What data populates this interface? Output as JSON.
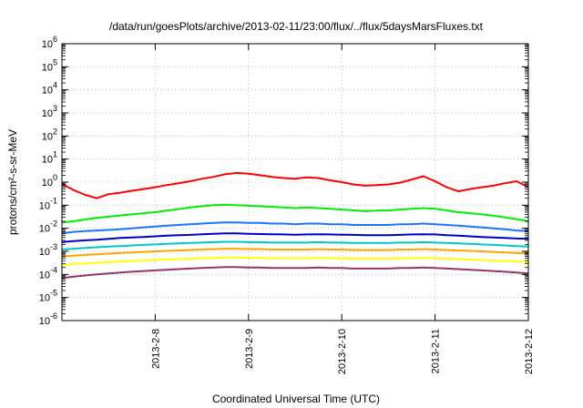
{
  "chart_data": {
    "type": "line",
    "title": "/data/run/goesPlots/archive/2013-02-11/23:00/flux/../flux/5daysMarsFluxes.txt",
    "xlabel": "Coordinated Universal Time (UTC)",
    "ylabel": "protons/cm²-s-sr-MeV",
    "yscale": "log",
    "ylim": [
      1e-06,
      1000000.0
    ],
    "xlim": [
      "2013-02-07 00:00",
      "2013-02-12 00:00"
    ],
    "grid": true,
    "legend": "none",
    "x_ticks": [
      "2013-2-8",
      "2013-2-9",
      "2013-2-10",
      "2013-2-11",
      "2013-2-12"
    ],
    "y_ticks": [
      {
        "base": "10",
        "exp": "-6"
      },
      {
        "base": "10",
        "exp": "-5"
      },
      {
        "base": "10",
        "exp": "-4"
      },
      {
        "base": "10",
        "exp": "-3"
      },
      {
        "base": "10",
        "exp": "-2"
      },
      {
        "base": "10",
        "exp": "-1"
      },
      {
        "base": "10",
        "exp": "0"
      },
      {
        "base": "10",
        "exp": "1"
      },
      {
        "base": "10",
        "exp": "2"
      },
      {
        "base": "10",
        "exp": "3"
      },
      {
        "base": "10",
        "exp": "4"
      },
      {
        "base": "10",
        "exp": "5"
      },
      {
        "base": "10",
        "exp": "6"
      }
    ],
    "x": [
      "2013-02-07 00:00",
      "2013-02-07 03:00",
      "2013-02-07 06:00",
      "2013-02-07 09:00",
      "2013-02-07 12:00",
      "2013-02-07 15:00",
      "2013-02-07 18:00",
      "2013-02-07 21:00",
      "2013-02-08 00:00",
      "2013-02-08 03:00",
      "2013-02-08 06:00",
      "2013-02-08 09:00",
      "2013-02-08 12:00",
      "2013-02-08 15:00",
      "2013-02-08 18:00",
      "2013-02-08 21:00",
      "2013-02-09 00:00",
      "2013-02-09 03:00",
      "2013-02-09 06:00",
      "2013-02-09 09:00",
      "2013-02-09 12:00",
      "2013-02-09 15:00",
      "2013-02-09 18:00",
      "2013-02-09 21:00",
      "2013-02-10 00:00",
      "2013-02-10 03:00",
      "2013-02-10 06:00",
      "2013-02-10 09:00",
      "2013-02-10 12:00",
      "2013-02-10 15:00",
      "2013-02-10 18:00",
      "2013-02-10 21:00",
      "2013-02-11 00:00",
      "2013-02-11 03:00",
      "2013-02-11 06:00",
      "2013-02-11 09:00",
      "2013-02-11 12:00",
      "2013-02-11 15:00",
      "2013-02-11 18:00",
      "2013-02-11 21:00",
      "2013-02-12 00:00"
    ],
    "series": [
      {
        "color": "#ff0000",
        "values": [
          0.85,
          0.45,
          0.28,
          0.2,
          0.3,
          0.35,
          0.42,
          0.5,
          0.6,
          0.75,
          0.9,
          1.1,
          1.4,
          1.7,
          2.2,
          2.5,
          2.3,
          2.0,
          1.7,
          1.5,
          1.4,
          1.6,
          1.5,
          1.2,
          1.0,
          0.8,
          0.7,
          0.75,
          0.8,
          0.95,
          1.3,
          1.8,
          1.1,
          0.6,
          0.4,
          0.5,
          0.6,
          0.7,
          0.9,
          1.1,
          0.6
        ]
      },
      {
        "color": "#00ee00",
        "values": [
          0.018,
          0.02,
          0.024,
          0.028,
          0.032,
          0.036,
          0.04,
          0.045,
          0.05,
          0.058,
          0.068,
          0.08,
          0.09,
          0.1,
          0.105,
          0.1,
          0.095,
          0.09,
          0.085,
          0.08,
          0.075,
          0.08,
          0.075,
          0.07,
          0.065,
          0.06,
          0.055,
          0.058,
          0.06,
          0.065,
          0.07,
          0.075,
          0.07,
          0.06,
          0.05,
          0.045,
          0.04,
          0.035,
          0.03,
          0.025,
          0.02
        ]
      },
      {
        "color": "#1e74ff",
        "values": [
          0.006,
          0.007,
          0.0075,
          0.008,
          0.0085,
          0.009,
          0.01,
          0.011,
          0.012,
          0.013,
          0.014,
          0.015,
          0.016,
          0.017,
          0.018,
          0.018,
          0.017,
          0.017,
          0.016,
          0.016,
          0.015,
          0.016,
          0.016,
          0.015,
          0.015,
          0.014,
          0.014,
          0.014,
          0.014,
          0.015,
          0.015,
          0.016,
          0.015,
          0.014,
          0.013,
          0.012,
          0.011,
          0.01,
          0.009,
          0.008,
          0.0075
        ]
      },
      {
        "color": "#0000cc",
        "values": [
          0.0025,
          0.0028,
          0.003,
          0.0032,
          0.0035,
          0.0038,
          0.004,
          0.0042,
          0.0045,
          0.0048,
          0.005,
          0.0052,
          0.0055,
          0.0058,
          0.006,
          0.006,
          0.0058,
          0.0056,
          0.0055,
          0.0054,
          0.0053,
          0.0054,
          0.0055,
          0.0054,
          0.0053,
          0.0052,
          0.005,
          0.005,
          0.005,
          0.0052,
          0.0054,
          0.0055,
          0.0054,
          0.005,
          0.0048,
          0.0045,
          0.0042,
          0.004,
          0.0038,
          0.0036,
          0.0035
        ]
      },
      {
        "color": "#00c8c8",
        "values": [
          0.0012,
          0.0013,
          0.0014,
          0.0015,
          0.0016,
          0.0017,
          0.0018,
          0.0019,
          0.002,
          0.0021,
          0.0022,
          0.0023,
          0.0024,
          0.0025,
          0.0026,
          0.0026,
          0.0025,
          0.0025,
          0.0024,
          0.0024,
          0.0024,
          0.0024,
          0.0025,
          0.0024,
          0.0024,
          0.0023,
          0.0023,
          0.0023,
          0.0023,
          0.0024,
          0.0024,
          0.0025,
          0.0024,
          0.0023,
          0.0022,
          0.0021,
          0.002,
          0.0019,
          0.0018,
          0.0017,
          0.0016
        ]
      },
      {
        "color": "#ffa500",
        "values": [
          0.0006,
          0.00065,
          0.0007,
          0.00075,
          0.0008,
          0.00085,
          0.0009,
          0.00095,
          0.001,
          0.00105,
          0.0011,
          0.00115,
          0.0012,
          0.00125,
          0.0013,
          0.0013,
          0.00125,
          0.00125,
          0.0012,
          0.0012,
          0.0012,
          0.0012,
          0.00125,
          0.0012,
          0.0012,
          0.00115,
          0.00115,
          0.00115,
          0.00115,
          0.0012,
          0.0012,
          0.00125,
          0.0012,
          0.00115,
          0.0011,
          0.00105,
          0.001,
          0.00095,
          0.0009,
          0.00085,
          0.0008
        ]
      },
      {
        "color": "#ffff00",
        "values": [
          0.00025,
          0.00028,
          0.0003,
          0.00032,
          0.00034,
          0.00036,
          0.00038,
          0.0004,
          0.00042,
          0.00044,
          0.00046,
          0.00048,
          0.0005,
          0.00052,
          0.00054,
          0.00054,
          0.00052,
          0.00052,
          0.0005,
          0.0005,
          0.0005,
          0.0005,
          0.00052,
          0.0005,
          0.0005,
          0.00048,
          0.00048,
          0.00048,
          0.00048,
          0.0005,
          0.0005,
          0.00052,
          0.0005,
          0.00048,
          0.00046,
          0.00044,
          0.00042,
          0.0004,
          0.00038,
          0.00036,
          0.00034
        ]
      },
      {
        "color": "#993366",
        "values": [
          7e-05,
          8e-05,
          9e-05,
          0.0001,
          0.00011,
          0.00012,
          0.00013,
          0.00014,
          0.00015,
          0.00016,
          0.00017,
          0.00018,
          0.00019,
          0.0002,
          0.00021,
          0.00021,
          0.0002,
          0.0002,
          0.00019,
          0.00019,
          0.00019,
          0.00019,
          0.0002,
          0.00019,
          0.00019,
          0.00018,
          0.00018,
          0.00018,
          0.00018,
          0.00019,
          0.00019,
          0.0002,
          0.00019,
          0.00018,
          0.00017,
          0.00016,
          0.00015,
          0.00014,
          0.00013,
          0.00012,
          0.00011
        ]
      }
    ]
  }
}
